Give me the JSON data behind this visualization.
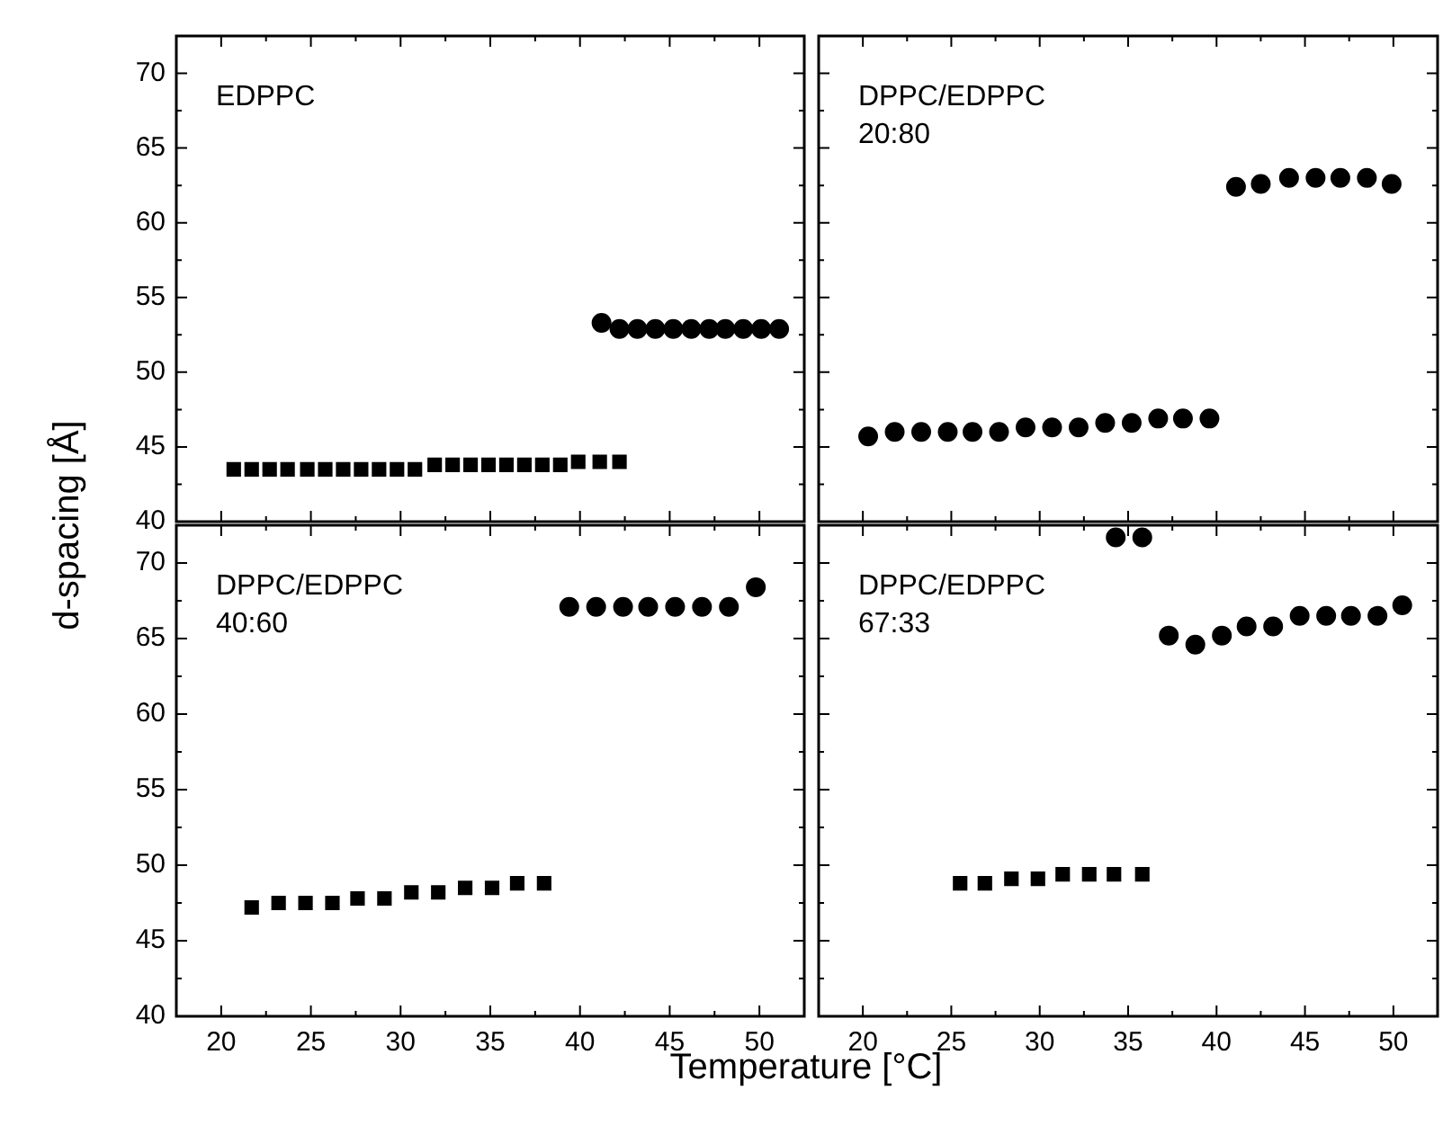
{
  "chart_data": [
    {
      "type": "scatter",
      "ylabel": "d-spacing [Å]",
      "annotations": [
        "EDPPC"
      ],
      "xlim": [
        17.5,
        52.5
      ],
      "ylim": [
        40,
        72.5
      ],
      "tick_labels": "y",
      "xticks": [
        20,
        {
          "value": 22.5,
          "label": null
        },
        25,
        {
          "value": 27.5,
          "label": null
        },
        30,
        {
          "value": 32.5,
          "label": null
        },
        35,
        {
          "value": 37.5,
          "label": null
        },
        40,
        {
          "value": 42.5,
          "label": null
        },
        45,
        {
          "value": 47.5,
          "label": null
        },
        50
      ],
      "yticks": [
        40,
        {
          "value": 42.5,
          "label": null
        },
        45,
        {
          "value": 47.5,
          "label": null
        },
        50,
        {
          "value": 52.5,
          "label": null
        },
        55,
        {
          "value": 57.5,
          "label": null
        },
        60,
        {
          "value": 62.5,
          "label": null
        },
        65,
        {
          "value": 67.5,
          "label": null
        },
        70
      ],
      "series": [
        {
          "color": "#000000",
          "marker": "square",
          "x": [
            20.7,
            21.7,
            22.7,
            23.7,
            24.8,
            25.8,
            26.8,
            27.8,
            28.8,
            29.8,
            30.8,
            31.9,
            32.9,
            33.9,
            34.9,
            35.9,
            36.9,
            37.9,
            38.9,
            39.9,
            41.1,
            42.2
          ],
          "values": [
            43.5,
            43.5,
            43.5,
            43.5,
            43.5,
            43.5,
            43.5,
            43.5,
            43.5,
            43.5,
            43.5,
            43.8,
            43.8,
            43.8,
            43.8,
            43.8,
            43.8,
            43.8,
            43.8,
            44.0,
            44.0,
            44.0
          ]
        },
        {
          "color": "#000000",
          "marker": "circle",
          "x": [
            41.2,
            42.2,
            43.2,
            44.2,
            45.2,
            46.2,
            47.2,
            48.1,
            49.1,
            50.1,
            51.1
          ],
          "values": [
            53.3,
            52.9,
            52.9,
            52.9,
            52.9,
            52.9,
            52.9,
            52.9,
            52.9,
            52.9,
            52.9
          ]
        }
      ]
    },
    {
      "type": "scatter",
      "annotations": [
        "DPPC/EDPPC",
        "20:80"
      ],
      "xlim": [
        17.5,
        52.5
      ],
      "ylim": [
        40,
        72.5
      ],
      "tick_labels": false,
      "xticks": [
        20,
        {
          "value": 22.5,
          "label": null
        },
        25,
        {
          "value": 27.5,
          "label": null
        },
        30,
        {
          "value": 32.5,
          "label": null
        },
        35,
        {
          "value": 37.5,
          "label": null
        },
        40,
        {
          "value": 42.5,
          "label": null
        },
        45,
        {
          "value": 47.5,
          "label": null
        },
        50
      ],
      "yticks": [
        40,
        {
          "value": 42.5,
          "label": null
        },
        45,
        {
          "value": 47.5,
          "label": null
        },
        50,
        {
          "value": 52.5,
          "label": null
        },
        55,
        {
          "value": 57.5,
          "label": null
        },
        60,
        {
          "value": 62.5,
          "label": null
        },
        65,
        {
          "value": 67.5,
          "label": null
        },
        70
      ],
      "series": [
        {
          "color": "#000000",
          "marker": "circle",
          "x": [
            20.3,
            21.8,
            23.3,
            24.8,
            26.2,
            27.7,
            29.2,
            30.7,
            32.2,
            33.7,
            35.2,
            36.7,
            38.1,
            39.6
          ],
          "values": [
            45.7,
            46.0,
            46.0,
            46.0,
            46.0,
            46.0,
            46.3,
            46.3,
            46.3,
            46.6,
            46.6,
            46.9,
            46.9,
            46.9
          ]
        },
        {
          "color": "#000000",
          "marker": "circle",
          "x": [
            41.1,
            42.5,
            44.1,
            45.6,
            47.0,
            48.5,
            49.9
          ],
          "values": [
            62.4,
            62.6,
            63.0,
            63.0,
            63.0,
            63.0,
            62.6
          ]
        }
      ]
    },
    {
      "type": "scatter",
      "xlabel": "Temperature [°C]",
      "annotations": [
        "DPPC/EDPPC",
        "40:60"
      ],
      "xlim": [
        17.5,
        52.5
      ],
      "ylim": [
        40,
        72.5
      ],
      "xticks": [
        20,
        {
          "value": 22.5,
          "label": null
        },
        25,
        {
          "value": 27.5,
          "label": null
        },
        30,
        {
          "value": 32.5,
          "label": null
        },
        35,
        {
          "value": 37.5,
          "label": null
        },
        40,
        {
          "value": 42.5,
          "label": null
        },
        45,
        {
          "value": 47.5,
          "label": null
        },
        50
      ],
      "yticks": [
        40,
        {
          "value": 42.5,
          "label": null
        },
        45,
        {
          "value": 47.5,
          "label": null
        },
        50,
        {
          "value": 52.5,
          "label": null
        },
        55,
        {
          "value": 57.5,
          "label": null
        },
        60,
        {
          "value": 62.5,
          "label": null
        },
        65,
        {
          "value": 67.5,
          "label": null
        },
        70
      ],
      "series": [
        {
          "color": "#000000",
          "marker": "square",
          "x": [
            21.7,
            23.2,
            24.7,
            26.2,
            27.6,
            29.1,
            30.6,
            32.1,
            33.6,
            35.1,
            36.5,
            38.0
          ],
          "values": [
            47.2,
            47.5,
            47.5,
            47.5,
            47.8,
            47.8,
            48.2,
            48.2,
            48.5,
            48.5,
            48.8,
            48.8
          ]
        },
        {
          "color": "#000000",
          "marker": "circle",
          "x": [
            39.4,
            40.9,
            42.4,
            43.8,
            45.3,
            46.8,
            48.3,
            49.8
          ],
          "values": [
            67.1,
            67.1,
            67.1,
            67.1,
            67.1,
            67.1,
            67.1,
            68.4
          ]
        }
      ]
    },
    {
      "type": "scatter",
      "annotations": [
        "DPPC/EDPPC",
        "67:33"
      ],
      "xlim": [
        17.5,
        52.5
      ],
      "ylim": [
        40,
        72.5
      ],
      "tick_labels": "x",
      "xticks": [
        20,
        {
          "value": 22.5,
          "label": null
        },
        25,
        {
          "value": 27.5,
          "label": null
        },
        30,
        {
          "value": 32.5,
          "label": null
        },
        35,
        {
          "value": 37.5,
          "label": null
        },
        40,
        {
          "value": 42.5,
          "label": null
        },
        45,
        {
          "value": 47.5,
          "label": null
        },
        50
      ],
      "yticks": [
        40,
        {
          "value": 42.5,
          "label": null
        },
        45,
        {
          "value": 47.5,
          "label": null
        },
        50,
        {
          "value": 52.5,
          "label": null
        },
        55,
        {
          "value": 57.5,
          "label": null
        },
        60,
        {
          "value": 62.5,
          "label": null
        },
        65,
        {
          "value": 67.5,
          "label": null
        },
        70
      ],
      "series": [
        {
          "color": "#000000",
          "marker": "square",
          "x": [
            25.5,
            26.9,
            28.4,
            29.9,
            31.3,
            32.8,
            34.2,
            35.8
          ],
          "values": [
            48.8,
            48.8,
            49.1,
            49.1,
            49.4,
            49.4,
            49.4,
            49.4
          ]
        },
        {
          "color": "#000000",
          "marker": "circle",
          "x": [
            34.3,
            35.8
          ],
          "values": [
            71.7,
            71.7
          ]
        },
        {
          "color": "#000000",
          "marker": "circle",
          "x": [
            37.3,
            38.8,
            40.3,
            41.7,
            43.2,
            44.7,
            46.2,
            47.6,
            49.1,
            50.5
          ],
          "values": [
            65.2,
            64.6,
            65.2,
            65.8,
            65.8,
            66.5,
            66.5,
            66.5,
            66.5,
            67.2
          ]
        }
      ]
    }
  ]
}
